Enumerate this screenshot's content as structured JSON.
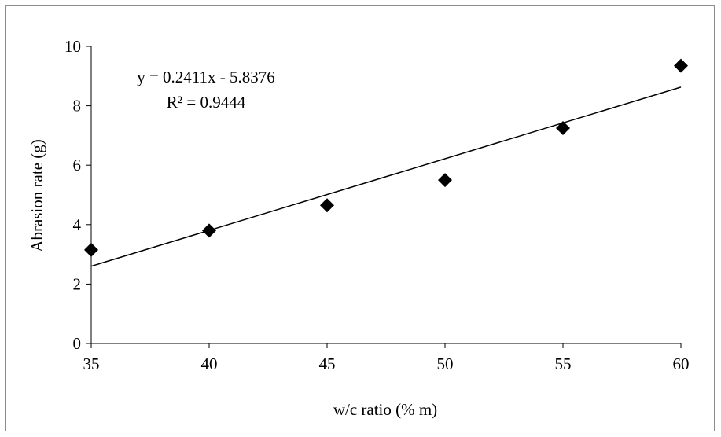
{
  "chart_data": {
    "type": "scatter",
    "xlabel": "w/c ratio (% m)",
    "ylabel": "Abrasion rate  (g)",
    "xlim": [
      35,
      60
    ],
    "ylim": [
      0,
      10
    ],
    "xticks": [
      35,
      40,
      45,
      50,
      55,
      60
    ],
    "yticks": [
      0,
      2,
      4,
      6,
      8,
      10
    ],
    "grid": false,
    "legend": "none",
    "series": [
      {
        "x": [
          35,
          40,
          45,
          50,
          55,
          60
        ],
        "y": [
          3.15,
          3.8,
          4.65,
          5.5,
          7.25,
          9.35
        ],
        "marker": "diamond",
        "color": "#000000"
      }
    ],
    "trendline": {
      "slope": 0.2411,
      "intercept": -5.8376,
      "color": "#000000"
    },
    "annotations": {
      "equation": "y = 0.2411x - 5.8376",
      "r_squared": "R² = 0.9444"
    }
  }
}
